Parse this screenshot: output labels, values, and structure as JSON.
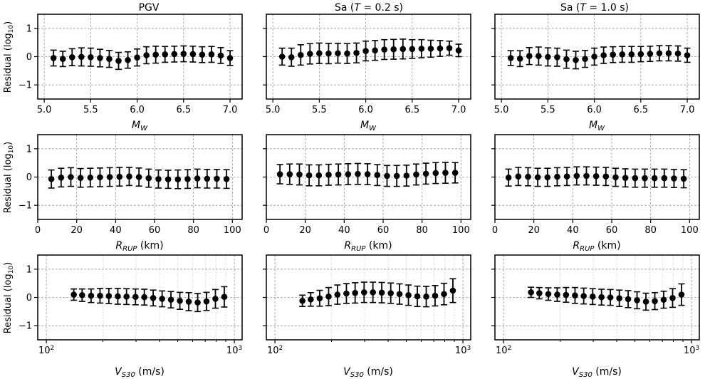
{
  "figure": {
    "ylabel": "Residual (log10)",
    "ylabel_main": "Residual (log",
    "ylabel_sub": "10",
    "ylabel_close": ")"
  },
  "column_titles": [
    {
      "main": "PGV",
      "italic": "",
      "tail": ""
    },
    {
      "main": "Sa (",
      "italic": "T",
      "tail": " = 0.2 s)"
    },
    {
      "main": "Sa (",
      "italic": "T",
      "tail": " = 1.0 s)"
    }
  ],
  "row_xlabels": [
    {
      "sym": "M",
      "sub": "W",
      "unit": ""
    },
    {
      "sym": "R",
      "sub": "RUP",
      "unit": " (km)"
    },
    {
      "sym": "V",
      "sub": "S30",
      "unit": " (m/s)"
    }
  ],
  "chart_data": [
    {
      "type": "scatter",
      "row": 0,
      "col": 0,
      "title": "PGV",
      "xlabel": "MW",
      "ylabel": "Residual (log10)",
      "xlim": [
        4.93,
        7.13
      ],
      "ylim": [
        -1.5,
        1.5
      ],
      "xscale": "linear",
      "xticks": [
        5.0,
        5.5,
        6.0,
        6.5,
        7.0
      ],
      "xticklabels": [
        "5.0",
        "5.5",
        "6.0",
        "6.5",
        "7.0"
      ],
      "yticks": [
        -1,
        0,
        1
      ],
      "yticklabels": [
        "−1",
        "0",
        "1"
      ],
      "x": [
        5.1,
        5.2,
        5.3,
        5.4,
        5.5,
        5.6,
        5.7,
        5.8,
        5.9,
        6.0,
        6.1,
        6.2,
        6.3,
        6.4,
        6.5,
        6.6,
        6.7,
        6.8,
        6.9,
        7.0
      ],
      "y": [
        -0.05,
        -0.08,
        -0.02,
        -0.01,
        -0.02,
        -0.05,
        -0.08,
        -0.15,
        -0.12,
        -0.03,
        0.05,
        0.07,
        0.08,
        0.09,
        0.1,
        0.09,
        0.07,
        0.08,
        0.04,
        -0.05
      ],
      "err": [
        0.28,
        0.27,
        0.3,
        0.32,
        0.32,
        0.31,
        0.3,
        0.3,
        0.29,
        0.3,
        0.3,
        0.3,
        0.28,
        0.28,
        0.28,
        0.28,
        0.28,
        0.28,
        0.28,
        0.26
      ]
    },
    {
      "type": "scatter",
      "row": 0,
      "col": 1,
      "title": "Sa (T = 0.2 s)",
      "xlabel": "MW",
      "ylabel": "",
      "xlim": [
        4.93,
        7.13
      ],
      "ylim": [
        -1.5,
        1.5
      ],
      "xscale": "linear",
      "xticks": [
        5.0,
        5.5,
        6.0,
        6.5,
        7.0
      ],
      "xticklabels": [
        "5.0",
        "5.5",
        "6.0",
        "6.5",
        "7.0"
      ],
      "yticks": [
        -1,
        0,
        1
      ],
      "yticklabels": [
        "",
        "",
        ""
      ],
      "x": [
        5.1,
        5.2,
        5.3,
        5.4,
        5.5,
        5.6,
        5.7,
        5.8,
        5.9,
        6.0,
        6.1,
        6.2,
        6.3,
        6.4,
        6.5,
        6.6,
        6.7,
        6.8,
        6.9,
        7.0
      ],
      "y": [
        0.0,
        -0.02,
        0.06,
        0.1,
        0.12,
        0.11,
        0.12,
        0.11,
        0.13,
        0.2,
        0.22,
        0.25,
        0.26,
        0.27,
        0.27,
        0.28,
        0.28,
        0.29,
        0.3,
        0.22
      ],
      "err": [
        0.3,
        0.32,
        0.36,
        0.36,
        0.36,
        0.36,
        0.35,
        0.35,
        0.35,
        0.35,
        0.35,
        0.35,
        0.35,
        0.35,
        0.33,
        0.32,
        0.3,
        0.28,
        0.25,
        0.22
      ]
    },
    {
      "type": "scatter",
      "row": 0,
      "col": 2,
      "title": "Sa (T = 1.0 s)",
      "xlabel": "MW",
      "ylabel": "",
      "xlim": [
        4.93,
        7.13
      ],
      "ylim": [
        -1.5,
        1.5
      ],
      "xscale": "linear",
      "xticks": [
        5.0,
        5.5,
        6.0,
        6.5,
        7.0
      ],
      "xticklabels": [
        "5.0",
        "5.5",
        "6.0",
        "6.5",
        "7.0"
      ],
      "yticks": [
        -1,
        0,
        1
      ],
      "yticklabels": [
        "",
        "",
        ""
      ],
      "x": [
        5.1,
        5.2,
        5.3,
        5.4,
        5.5,
        5.6,
        5.7,
        5.8,
        5.9,
        6.0,
        6.1,
        6.2,
        6.3,
        6.4,
        6.5,
        6.6,
        6.7,
        6.8,
        6.9,
        7.0
      ],
      "y": [
        -0.05,
        -0.07,
        0.02,
        0.02,
        -0.01,
        -0.02,
        -0.09,
        -0.12,
        -0.08,
        0.0,
        0.05,
        0.07,
        0.08,
        0.08,
        0.09,
        0.1,
        0.12,
        0.12,
        0.11,
        0.05
      ],
      "err": [
        0.26,
        0.28,
        0.3,
        0.32,
        0.32,
        0.32,
        0.32,
        0.31,
        0.3,
        0.3,
        0.29,
        0.28,
        0.28,
        0.28,
        0.27,
        0.27,
        0.27,
        0.27,
        0.27,
        0.25
      ]
    },
    {
      "type": "scatter",
      "row": 1,
      "col": 0,
      "title": "",
      "xlabel": "RRUP (km)",
      "ylabel": "Residual (log10)",
      "xlim": [
        0,
        105
      ],
      "ylim": [
        -1.5,
        1.5
      ],
      "xscale": "linear",
      "xticks": [
        0,
        20,
        40,
        60,
        80,
        100
      ],
      "xticklabels": [
        "0",
        "20",
        "40",
        "60",
        "80",
        "100"
      ],
      "yticks": [
        -1,
        0,
        1
      ],
      "yticklabels": [
        "−1",
        "0",
        "1"
      ],
      "x": [
        7,
        12,
        17,
        22,
        27,
        32,
        37,
        42,
        47,
        52,
        57,
        62,
        67,
        72,
        77,
        82,
        87,
        92,
        97
      ],
      "y": [
        -0.07,
        -0.02,
        0.0,
        -0.03,
        -0.02,
        -0.01,
        0.0,
        0.01,
        0.02,
        0.0,
        -0.04,
        -0.07,
        -0.08,
        -0.08,
        -0.07,
        -0.05,
        -0.06,
        -0.06,
        -0.07
      ],
      "err": [
        0.32,
        0.33,
        0.33,
        0.33,
        0.33,
        0.33,
        0.33,
        0.33,
        0.32,
        0.32,
        0.32,
        0.32,
        0.32,
        0.33,
        0.33,
        0.33,
        0.33,
        0.33,
        0.33
      ]
    },
    {
      "type": "scatter",
      "row": 1,
      "col": 1,
      "title": "",
      "xlabel": "RRUP (km)",
      "ylabel": "",
      "xlim": [
        0,
        105
      ],
      "ylim": [
        -1.5,
        1.5
      ],
      "xscale": "linear",
      "xticks": [
        0,
        20,
        40,
        60,
        80,
        100
      ],
      "xticklabels": [
        "0",
        "20",
        "40",
        "60",
        "80",
        "100"
      ],
      "yticks": [
        -1,
        0,
        1
      ],
      "yticklabels": [
        "",
        "",
        ""
      ],
      "x": [
        7,
        12,
        17,
        22,
        27,
        32,
        37,
        42,
        47,
        52,
        57,
        62,
        67,
        72,
        77,
        82,
        87,
        92,
        97
      ],
      "y": [
        0.1,
        0.1,
        0.09,
        0.06,
        0.06,
        0.08,
        0.09,
        0.1,
        0.11,
        0.1,
        0.07,
        0.04,
        0.04,
        0.05,
        0.09,
        0.12,
        0.14,
        0.15,
        0.15
      ],
      "err": [
        0.34,
        0.36,
        0.37,
        0.37,
        0.37,
        0.37,
        0.37,
        0.37,
        0.37,
        0.37,
        0.37,
        0.37,
        0.37,
        0.37,
        0.37,
        0.37,
        0.37,
        0.37,
        0.36
      ]
    },
    {
      "type": "scatter",
      "row": 1,
      "col": 2,
      "title": "",
      "xlabel": "RRUP (km)",
      "ylabel": "",
      "xlim": [
        0,
        105
      ],
      "ylim": [
        -1.5,
        1.5
      ],
      "xscale": "linear",
      "xticks": [
        0,
        20,
        40,
        60,
        80,
        100
      ],
      "xticklabels": [
        "0",
        "20",
        "40",
        "60",
        "80",
        "100"
      ],
      "yticks": [
        -1,
        0,
        1
      ],
      "yticklabels": [
        "",
        "",
        ""
      ],
      "x": [
        7,
        12,
        17,
        22,
        27,
        32,
        37,
        42,
        47,
        52,
        57,
        62,
        67,
        72,
        77,
        82,
        87,
        92,
        97
      ],
      "y": [
        -0.02,
        0.02,
        0.01,
        -0.01,
        -0.01,
        0.01,
        0.02,
        0.04,
        0.04,
        0.03,
        0.02,
        -0.01,
        -0.03,
        -0.04,
        -0.04,
        -0.04,
        -0.04,
        -0.05,
        -0.06
      ],
      "err": [
        0.3,
        0.32,
        0.32,
        0.32,
        0.32,
        0.32,
        0.32,
        0.32,
        0.32,
        0.32,
        0.32,
        0.32,
        0.32,
        0.32,
        0.32,
        0.32,
        0.32,
        0.32,
        0.32
      ]
    },
    {
      "type": "scatter",
      "row": 2,
      "col": 0,
      "title": "",
      "xlabel": "VS30 (m/s)",
      "ylabel": "Residual (log10)",
      "xlim": [
        90,
        1100
      ],
      "ylim": [
        -1.5,
        1.5
      ],
      "xscale": "log",
      "xticks": [
        100,
        1000
      ],
      "xticklabels": [
        "10^2",
        "10^3"
      ],
      "yticks": [
        -1,
        0,
        1
      ],
      "yticklabels": [
        "−1",
        "0",
        "1"
      ],
      "x": [
        140,
        155,
        173,
        193,
        215,
        240,
        267,
        298,
        332,
        370,
        413,
        460,
        513,
        572,
        638,
        711,
        793,
        884
      ],
      "y": [
        0.1,
        0.08,
        0.06,
        0.06,
        0.05,
        0.04,
        0.03,
        0.02,
        0.01,
        -0.02,
        -0.05,
        -0.08,
        -0.12,
        -0.15,
        -0.18,
        -0.14,
        -0.05,
        0.02
      ],
      "err": [
        0.2,
        0.22,
        0.24,
        0.26,
        0.27,
        0.28,
        0.28,
        0.28,
        0.28,
        0.28,
        0.28,
        0.29,
        0.3,
        0.32,
        0.32,
        0.32,
        0.33,
        0.36
      ]
    },
    {
      "type": "scatter",
      "row": 2,
      "col": 1,
      "title": "",
      "xlabel": "VS30 (m/s)",
      "ylabel": "",
      "xlim": [
        90,
        1100
      ],
      "ylim": [
        -1.5,
        1.5
      ],
      "xscale": "log",
      "xticks": [
        100,
        1000
      ],
      "xticklabels": [
        "10^2",
        "10^3"
      ],
      "yticks": [
        -1,
        0,
        1
      ],
      "yticklabels": [
        "",
        "",
        ""
      ],
      "x": [
        140,
        155,
        173,
        193,
        215,
        240,
        267,
        298,
        332,
        370,
        413,
        460,
        513,
        572,
        638,
        711,
        793,
        884
      ],
      "y": [
        -0.12,
        -0.07,
        -0.03,
        0.03,
        0.1,
        0.14,
        0.16,
        0.18,
        0.18,
        0.17,
        0.15,
        0.12,
        0.08,
        0.04,
        0.03,
        0.06,
        0.12,
        0.24
      ],
      "err": [
        0.2,
        0.24,
        0.28,
        0.32,
        0.34,
        0.35,
        0.36,
        0.36,
        0.36,
        0.36,
        0.36,
        0.36,
        0.36,
        0.36,
        0.36,
        0.36,
        0.38,
        0.42
      ]
    },
    {
      "type": "scatter",
      "row": 2,
      "col": 2,
      "title": "",
      "xlabel": "VS30 (m/s)",
      "ylabel": "",
      "xlim": [
        90,
        1100
      ],
      "ylim": [
        -1.5,
        1.5
      ],
      "xscale": "log",
      "xticks": [
        100,
        1000
      ],
      "xticklabels": [
        "10^2",
        "10^3"
      ],
      "yticks": [
        -1,
        0,
        1
      ],
      "yticklabels": [
        "",
        "",
        ""
      ],
      "x": [
        140,
        155,
        173,
        193,
        215,
        240,
        267,
        298,
        332,
        370,
        413,
        460,
        513,
        572,
        638,
        711,
        793,
        884
      ],
      "y": [
        0.18,
        0.15,
        0.12,
        0.1,
        0.09,
        0.07,
        0.05,
        0.03,
        0.01,
        0.0,
        -0.03,
        -0.06,
        -0.1,
        -0.15,
        -0.13,
        -0.08,
        -0.02,
        0.1
      ],
      "err": [
        0.18,
        0.2,
        0.22,
        0.24,
        0.26,
        0.28,
        0.28,
        0.28,
        0.28,
        0.28,
        0.29,
        0.3,
        0.3,
        0.3,
        0.3,
        0.3,
        0.33,
        0.38
      ]
    }
  ]
}
